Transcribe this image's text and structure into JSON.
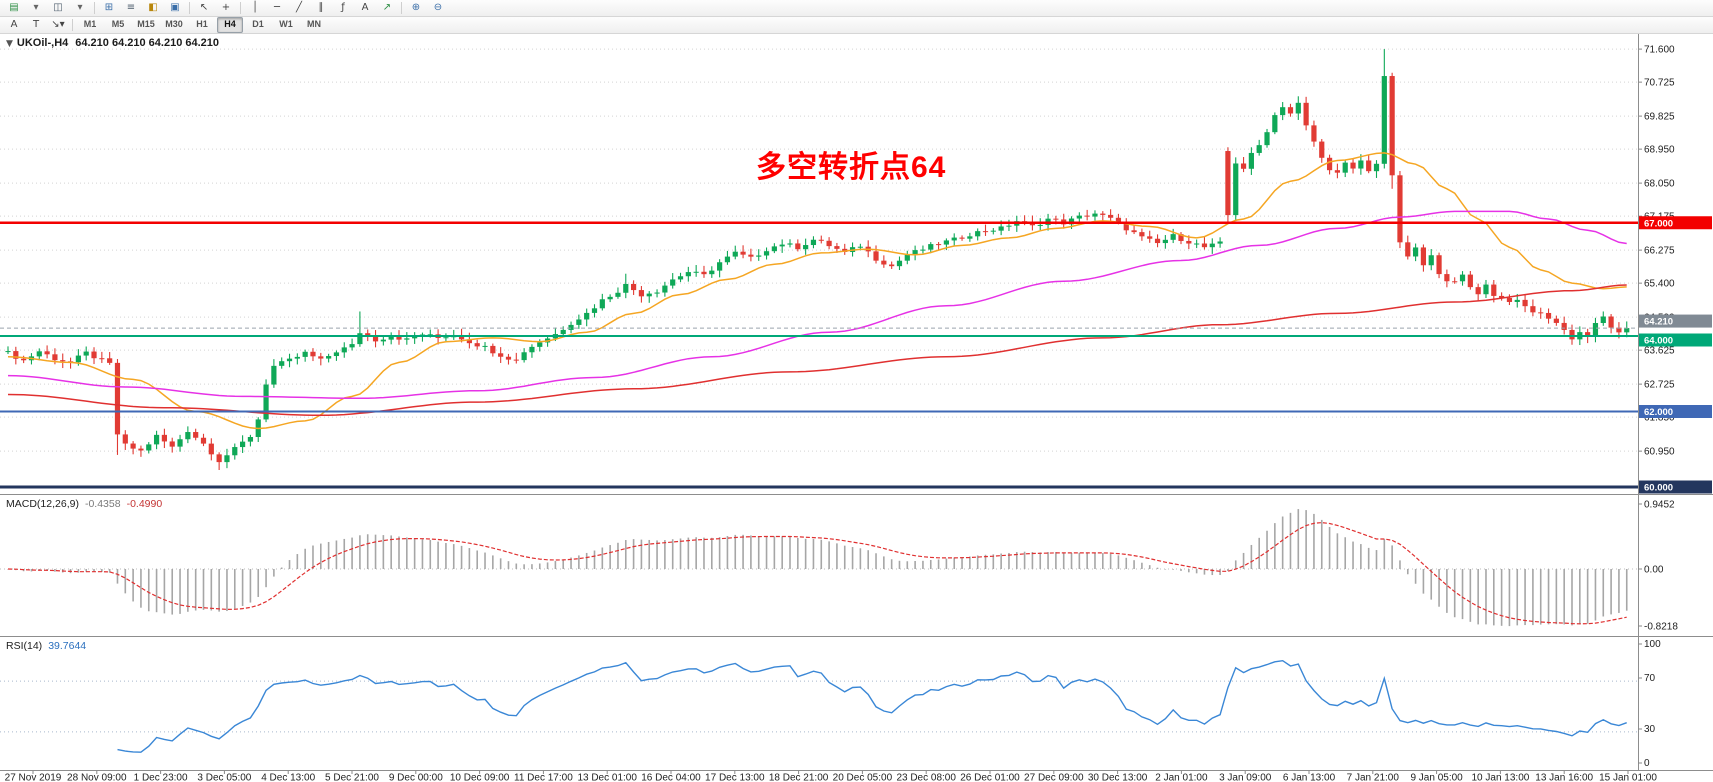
{
  "toolbars": {
    "standard_icons": [
      {
        "name": "new-chart-icon",
        "glyph": "▤",
        "color": "#2f8f46",
        "sep": false
      },
      {
        "name": "new-chart-dropdown-icon",
        "glyph": "▾",
        "color": "#666666",
        "sep": false
      },
      {
        "name": "chart-profiles-icon",
        "glyph": "◫",
        "color": "#4a5a6a",
        "sep": false
      },
      {
        "name": "chart-profiles-dropdown-icon",
        "glyph": "▾",
        "color": "#666666",
        "sep": true
      },
      {
        "name": "market-watch-icon",
        "glyph": "⊞",
        "color": "#3a6ea8",
        "sep": false
      },
      {
        "name": "data-window-icon",
        "glyph": "≡",
        "color": "#4a5a6a",
        "sep": false
      },
      {
        "name": "navigator-icon",
        "glyph": "◧",
        "color": "#b8860b",
        "sep": false
      },
      {
        "name": "terminal-icon",
        "glyph": "▣",
        "color": "#3a6ea8",
        "sep": true
      },
      {
        "name": "cursor-icon",
        "glyph": "↖",
        "color": "#444444",
        "sep": false
      },
      {
        "name": "crosshair-icon",
        "glyph": "+",
        "color": "#444444",
        "sep": true
      },
      {
        "name": "vertical-line-icon",
        "glyph": "│",
        "color": "#444444",
        "sep": false
      },
      {
        "name": "horizontal-line-icon",
        "glyph": "─",
        "color": "#444444",
        "sep": false
      },
      {
        "name": "trendline-icon",
        "glyph": "╱",
        "color": "#444444",
        "sep": false
      },
      {
        "name": "channel-icon",
        "glyph": "∥",
        "color": "#444444",
        "sep": false
      },
      {
        "name": "fibonacci-icon",
        "glyph": "ƒ",
        "color": "#444444",
        "sep": false
      },
      {
        "name": "text-icon",
        "glyph": "A",
        "color": "#444444",
        "sep": false
      },
      {
        "name": "arrow-icon",
        "glyph": "↗",
        "color": "#2f8f46",
        "sep": true
      },
      {
        "name": "zoom-in-icon",
        "glyph": "⊕",
        "color": "#3a6ea8",
        "sep": false
      },
      {
        "name": "zoom-out-icon",
        "glyph": "⊖",
        "color": "#3a6ea8",
        "sep": false
      }
    ],
    "line_tools": [
      {
        "name": "text-tool",
        "glyph": "A",
        "color": "#444444",
        "sep": false
      },
      {
        "name": "label-tool",
        "glyph": "T",
        "color": "#444444",
        "sep": false
      },
      {
        "name": "arrow-style-tool",
        "glyph": "↘▾",
        "color": "#444444",
        "sep": true
      }
    ],
    "timeframes": [
      "M1",
      "M5",
      "M15",
      "M30",
      "H1",
      "H4",
      "D1",
      "W1",
      "MN"
    ],
    "active_timeframe": "H4"
  },
  "header": {
    "collapse_glyph": "▼",
    "symbol_period": "UKOil-,H4",
    "ohlc": "64.210 64.210 64.210 64.210"
  },
  "annotation": {
    "text": "多空转折点64",
    "color": "#ff0000"
  },
  "chart_data": {
    "type": "candlestick",
    "symbol": "UKOil-",
    "timeframe": "H4",
    "bars": 208,
    "ylim": [
      59.8,
      72.0
    ],
    "y_ticks": [
      "71.600",
      "70.725",
      "69.825",
      "68.950",
      "68.050",
      "67.175",
      "66.275",
      "65.400",
      "64.500",
      "63.625",
      "62.725",
      "61.850",
      "60.950"
    ],
    "x_labels": [
      "27 Nov 2019",
      "28 Nov 09:00",
      "1 Dec 23:00",
      "3 Dec 05:00",
      "4 Dec 13:00",
      "5 Dec 21:00",
      "9 Dec 00:00",
      "10 Dec 09:00",
      "11 Dec 17:00",
      "13 Dec 01:00",
      "16 Dec 04:00",
      "17 Dec 13:00",
      "18 Dec 21:00",
      "20 Dec 05:00",
      "23 Dec 08:00",
      "26 Dec 01:00",
      "27 Dec 09:00",
      "30 Dec 13:00",
      "2 Jan 01:00",
      "3 Jan 09:00",
      "6 Jan 13:00",
      "7 Jan 21:00",
      "9 Jan 05:00",
      "10 Jan 13:00",
      "13 Jan 16:00",
      "15 Jan 01:00"
    ],
    "candles": {
      "up_color": "#0fa857",
      "down_color": "#e13b34",
      "close_keypoints": [
        [
          0,
          63.55
        ],
        [
          2,
          63.35
        ],
        [
          4,
          63.6
        ],
        [
          6,
          63.4
        ],
        [
          8,
          63.3
        ],
        [
          10,
          63.55
        ],
        [
          12,
          63.35
        ],
        [
          13,
          63.25
        ],
        [
          14,
          61.4
        ],
        [
          15,
          61.1
        ],
        [
          17,
          60.95
        ],
        [
          19,
          61.35
        ],
        [
          21,
          61.05
        ],
        [
          23,
          61.5
        ],
        [
          25,
          61.15
        ],
        [
          27,
          60.7
        ],
        [
          29,
          61.0
        ],
        [
          31,
          61.35
        ],
        [
          32,
          61.8
        ],
        [
          33,
          62.75
        ],
        [
          34,
          63.2
        ],
        [
          36,
          63.35
        ],
        [
          38,
          63.55
        ],
        [
          40,
          63.35
        ],
        [
          42,
          63.6
        ],
        [
          44,
          63.75
        ],
        [
          45,
          64.1
        ],
        [
          47,
          63.9
        ],
        [
          49,
          64.0
        ],
        [
          51,
          63.9
        ],
        [
          53,
          64.05
        ],
        [
          55,
          63.95
        ],
        [
          57,
          64.05
        ],
        [
          59,
          63.85
        ],
        [
          61,
          63.7
        ],
        [
          63,
          63.5
        ],
        [
          65,
          63.35
        ],
        [
          66,
          63.6
        ],
        [
          68,
          63.85
        ],
        [
          70,
          64.05
        ],
        [
          72,
          64.35
        ],
        [
          74,
          64.6
        ],
        [
          76,
          64.95
        ],
        [
          78,
          65.2
        ],
        [
          79,
          65.35
        ],
        [
          81,
          65.1
        ],
        [
          83,
          65.2
        ],
        [
          85,
          65.5
        ],
        [
          87,
          65.7
        ],
        [
          89,
          65.6
        ],
        [
          91,
          65.95
        ],
        [
          93,
          66.2
        ],
        [
          95,
          66.05
        ],
        [
          97,
          66.3
        ],
        [
          99,
          66.45
        ],
        [
          101,
          66.35
        ],
        [
          103,
          66.55
        ],
        [
          105,
          66.4
        ],
        [
          107,
          66.2
        ],
        [
          109,
          66.4
        ],
        [
          111,
          66.05
        ],
        [
          113,
          65.85
        ],
        [
          115,
          66.15
        ],
        [
          117,
          66.3
        ],
        [
          119,
          66.45
        ],
        [
          121,
          66.55
        ],
        [
          123,
          66.7
        ],
        [
          125,
          66.8
        ],
        [
          127,
          66.85
        ],
        [
          129,
          67.05
        ],
        [
          131,
          66.9
        ],
        [
          133,
          67.1
        ],
        [
          135,
          67.0
        ],
        [
          137,
          67.15
        ],
        [
          139,
          67.25
        ],
        [
          141,
          67.1
        ],
        [
          143,
          66.85
        ],
        [
          145,
          66.6
        ],
        [
          147,
          66.45
        ],
        [
          149,
          66.65
        ],
        [
          151,
          66.5
        ],
        [
          153,
          66.35
        ],
        [
          155,
          66.45
        ],
        [
          156,
          67.2
        ],
        [
          157,
          68.6
        ],
        [
          158,
          68.45
        ],
        [
          159,
          68.8
        ],
        [
          160,
          69.05
        ],
        [
          161,
          69.45
        ],
        [
          162,
          69.85
        ],
        [
          163,
          70.1
        ],
        [
          164,
          69.9
        ],
        [
          165,
          70.15
        ],
        [
          166,
          69.55
        ],
        [
          167,
          69.15
        ],
        [
          168,
          68.7
        ],
        [
          169,
          68.45
        ],
        [
          170,
          68.3
        ],
        [
          171,
          68.55
        ],
        [
          172,
          68.4
        ],
        [
          173,
          68.65
        ],
        [
          174,
          68.35
        ],
        [
          175,
          68.6
        ],
        [
          176,
          70.9
        ],
        [
          177,
          68.2
        ],
        [
          178,
          66.5
        ],
        [
          179,
          66.05
        ],
        [
          180,
          66.35
        ],
        [
          181,
          65.85
        ],
        [
          182,
          66.1
        ],
        [
          183,
          65.7
        ],
        [
          184,
          65.5
        ],
        [
          185,
          65.4
        ],
        [
          186,
          65.6
        ],
        [
          187,
          65.3
        ],
        [
          188,
          65.15
        ],
        [
          189,
          65.35
        ],
        [
          190,
          65.1
        ],
        [
          191,
          65.0
        ],
        [
          193,
          64.9
        ],
        [
          195,
          64.65
        ],
        [
          197,
          64.5
        ],
        [
          198,
          64.35
        ],
        [
          199,
          64.15
        ],
        [
          200,
          63.95
        ],
        [
          201,
          64.1
        ],
        [
          202,
          64.0
        ],
        [
          203,
          64.3
        ],
        [
          204,
          64.5
        ],
        [
          205,
          64.25
        ],
        [
          206,
          64.05
        ],
        [
          207,
          64.21
        ]
      ],
      "open_overrides": {
        "0": 63.6,
        "156": 68.9
      },
      "wick_overrides": {
        "14": {
          "low": 60.85
        },
        "27": {
          "low": 60.45
        },
        "45": {
          "high": 64.65
        },
        "79": {
          "high": 65.65
        },
        "156": {
          "high": 69.0,
          "low": 67.0
        },
        "165": {
          "high": 70.35
        },
        "176": {
          "high": 71.6
        },
        "177": {
          "low": 67.9
        },
        "204": {
          "high": 64.65
        }
      }
    },
    "moving_averages": [
      {
        "name": "ma-fast",
        "color": "#f5a623",
        "keypoints": [
          [
            0,
            63.45
          ],
          [
            8,
            63.3
          ],
          [
            16,
            62.85
          ],
          [
            24,
            62.0
          ],
          [
            32,
            61.55
          ],
          [
            38,
            61.75
          ],
          [
            44,
            62.4
          ],
          [
            50,
            63.3
          ],
          [
            56,
            63.85
          ],
          [
            62,
            63.95
          ],
          [
            68,
            63.85
          ],
          [
            74,
            64.1
          ],
          [
            80,
            64.6
          ],
          [
            86,
            65.1
          ],
          [
            92,
            65.5
          ],
          [
            98,
            65.9
          ],
          [
            104,
            66.2
          ],
          [
            110,
            66.3
          ],
          [
            116,
            66.15
          ],
          [
            122,
            66.4
          ],
          [
            128,
            66.6
          ],
          [
            134,
            66.85
          ],
          [
            140,
            67.05
          ],
          [
            146,
            66.9
          ],
          [
            152,
            66.6
          ],
          [
            158,
            67.1
          ],
          [
            164,
            68.1
          ],
          [
            170,
            68.65
          ],
          [
            176,
            68.85
          ],
          [
            180,
            68.55
          ],
          [
            184,
            67.9
          ],
          [
            188,
            67.1
          ],
          [
            192,
            66.35
          ],
          [
            196,
            65.75
          ],
          [
            200,
            65.4
          ],
          [
            204,
            65.25
          ],
          [
            207,
            65.3
          ]
        ]
      },
      {
        "name": "ma-mid",
        "color": "#e632e6",
        "keypoints": [
          [
            0,
            62.95
          ],
          [
            15,
            62.65
          ],
          [
            30,
            62.4
          ],
          [
            45,
            62.35
          ],
          [
            60,
            62.55
          ],
          [
            75,
            62.9
          ],
          [
            90,
            63.45
          ],
          [
            105,
            64.1
          ],
          [
            120,
            64.8
          ],
          [
            135,
            65.45
          ],
          [
            150,
            66.0
          ],
          [
            160,
            66.4
          ],
          [
            170,
            66.85
          ],
          [
            178,
            67.15
          ],
          [
            185,
            67.3
          ],
          [
            192,
            67.3
          ],
          [
            197,
            67.1
          ],
          [
            202,
            66.8
          ],
          [
            207,
            66.45
          ]
        ]
      },
      {
        "name": "ma-slow",
        "color": "#e03030",
        "keypoints": [
          [
            0,
            62.45
          ],
          [
            20,
            62.1
          ],
          [
            40,
            61.9
          ],
          [
            60,
            62.25
          ],
          [
            80,
            62.6
          ],
          [
            100,
            63.05
          ],
          [
            120,
            63.45
          ],
          [
            140,
            63.95
          ],
          [
            155,
            64.3
          ],
          [
            170,
            64.6
          ],
          [
            185,
            64.9
          ],
          [
            200,
            65.2
          ],
          [
            207,
            65.35
          ]
        ]
      }
    ],
    "horizontal_lines": [
      {
        "name": "resistance-line",
        "label": "67.000",
        "price": 67.0,
        "color": "#f30000",
        "width": 2.4
      },
      {
        "name": "pivot-line",
        "label": "64.000",
        "price": 64.0,
        "color": "#00a878",
        "width": 2
      },
      {
        "name": "support-line",
        "label": "62.000",
        "price": 62.0,
        "color": "#3f68b5",
        "width": 2
      },
      {
        "name": "base-line",
        "label": "60.000",
        "price": 60.0,
        "color": "#24365e",
        "width": 3
      }
    ],
    "bid_marker": {
      "label": "64.210",
      "price": 64.21,
      "color": "#808a94"
    },
    "indicators": {
      "macd": {
        "label": "MACD(12,26,9)",
        "value_main": "-0.4358",
        "value_signal": "-0.4990",
        "scale": [
          "0.9452",
          "0.00",
          "-0.8218"
        ],
        "fast": 12,
        "slow": 26,
        "signal": 9,
        "histogram_color": "#a6a6a6",
        "signal_color": "#e03030"
      },
      "rsi": {
        "label": "RSI(14)",
        "value": "39.7644",
        "period": 14,
        "levels": [
          70,
          30
        ],
        "scale": [
          "100",
          "70",
          "30",
          "0"
        ],
        "color": "#3a87d6"
      }
    }
  }
}
